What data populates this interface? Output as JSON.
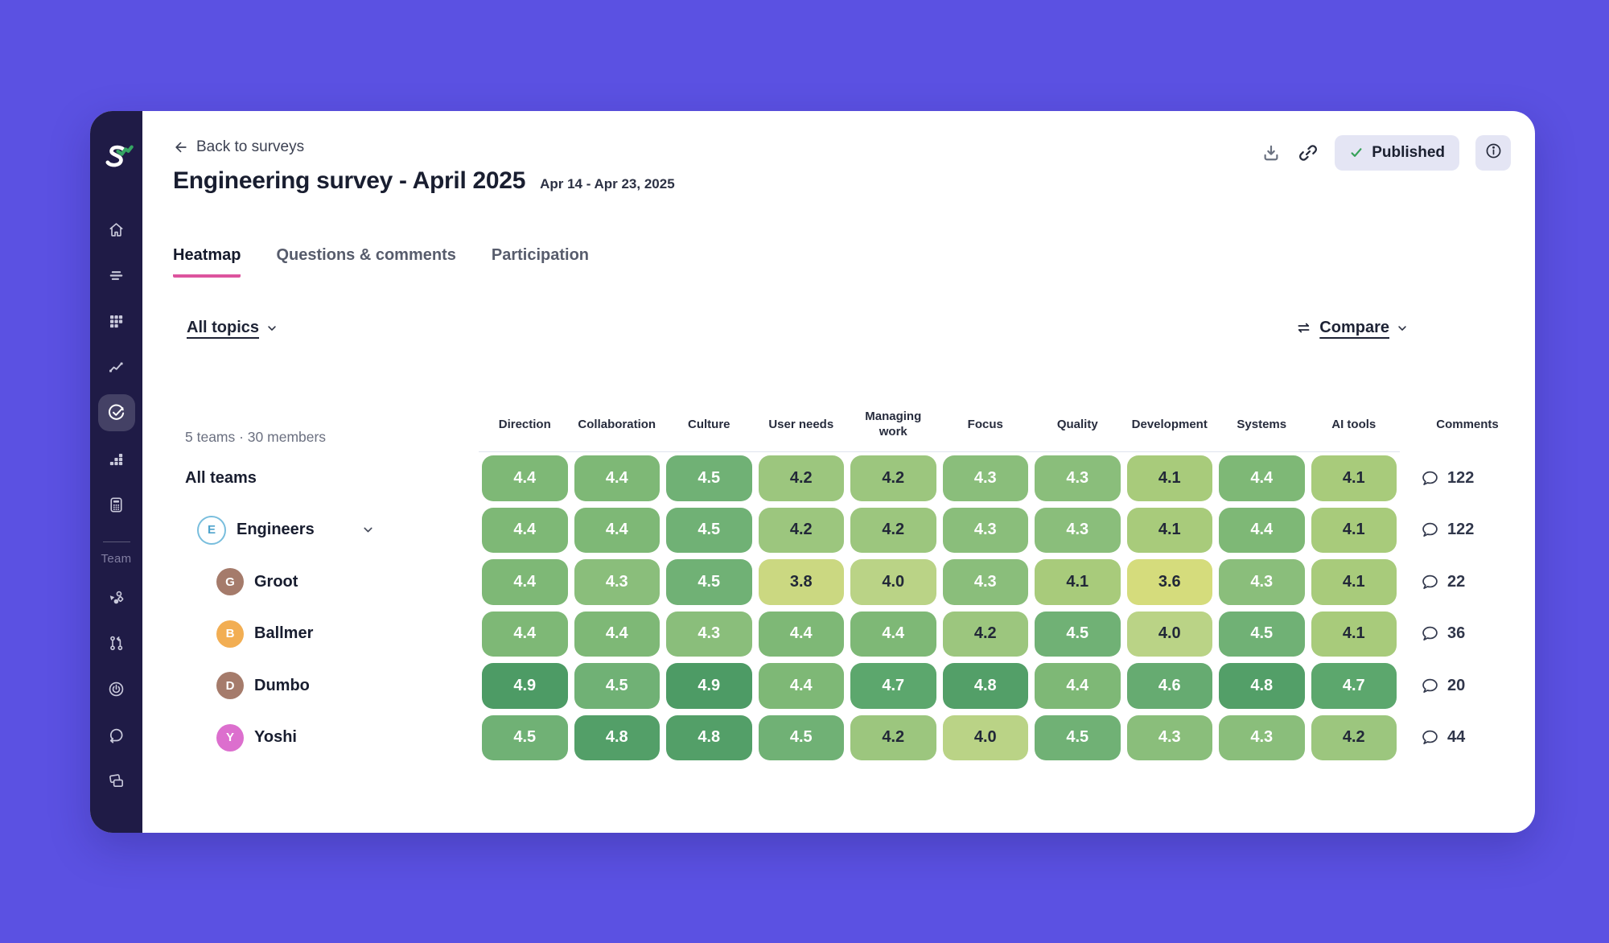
{
  "app": {
    "background_color": "#5b51e2",
    "sidebar_color": "#1f1b46",
    "accent_pink": "#dd549e",
    "badge_bg": "#e4e5f4",
    "published_check_green": "#36a159"
  },
  "sidebar": {
    "logo": "screenful-logo",
    "section_label": "Team",
    "nav_items": [
      {
        "icon": "home-icon",
        "active": false
      },
      {
        "icon": "list-bars-icon",
        "active": false
      },
      {
        "icon": "grid-icon",
        "active": false
      },
      {
        "icon": "trend-icon",
        "active": false
      },
      {
        "icon": "survey-check-icon",
        "active": true
      },
      {
        "icon": "bar-chart-icon",
        "active": false
      },
      {
        "icon": "calculator-icon",
        "active": false
      }
    ],
    "team_items": [
      {
        "icon": "shapes-icon",
        "active": false
      },
      {
        "icon": "pull-request-icon",
        "active": false
      },
      {
        "icon": "goal-icon",
        "active": false
      },
      {
        "icon": "sprint-loop-icon",
        "active": false
      },
      {
        "icon": "cards-icon",
        "active": false
      }
    ]
  },
  "header": {
    "back_label": "Back to surveys",
    "title": "Engineering survey - April 2025",
    "date_range": "Apr 14 - Apr 23, 2025",
    "published_label": "Published",
    "action_icons": [
      "download-icon",
      "link-icon",
      "info-icon"
    ]
  },
  "tabs": [
    {
      "label": "Heatmap",
      "active": true
    },
    {
      "label": "Questions & comments",
      "active": false
    },
    {
      "label": "Participation",
      "active": false
    }
  ],
  "filters": {
    "topics_label": "All topics",
    "compare_label": "Compare"
  },
  "heatmap": {
    "summary": "5 teams · 30 members",
    "columns": [
      "Direction",
      "Collaboration",
      "Culture",
      "User needs",
      "Managing work",
      "Focus",
      "Quality",
      "Development",
      "Systems",
      "AI tools",
      "Comments"
    ],
    "rows": [
      {
        "label": "All teams",
        "level": "all",
        "values": [
          "4.4",
          "4.4",
          "4.5",
          "4.2",
          "4.2",
          "4.3",
          "4.3",
          "4.1",
          "4.4",
          "4.1"
        ],
        "comments": "122"
      },
      {
        "label": "Engineers",
        "level": "group",
        "expandable": true,
        "avatar": {
          "letter": "E",
          "style": "outline",
          "color": "#79bedd"
        },
        "values": [
          "4.4",
          "4.4",
          "4.5",
          "4.2",
          "4.2",
          "4.3",
          "4.3",
          "4.1",
          "4.4",
          "4.1"
        ],
        "comments": "122"
      },
      {
        "label": "Groot",
        "level": "team",
        "avatar": {
          "letter": "G",
          "style": "fill",
          "color": "#a57b6b"
        },
        "values": [
          "4.4",
          "4.3",
          "4.5",
          "3.8",
          "4.0",
          "4.3",
          "4.1",
          "3.6",
          "4.3",
          "4.1"
        ],
        "comments": "22"
      },
      {
        "label": "Ballmer",
        "level": "team",
        "avatar": {
          "letter": "B",
          "style": "fill",
          "color": "#f2ae53"
        },
        "values": [
          "4.4",
          "4.4",
          "4.3",
          "4.4",
          "4.4",
          "4.2",
          "4.5",
          "4.0",
          "4.5",
          "4.1"
        ],
        "comments": "36"
      },
      {
        "label": "Dumbo",
        "level": "team",
        "avatar": {
          "letter": "D",
          "style": "fill",
          "color": "#a57b6b"
        },
        "values": [
          "4.9",
          "4.5",
          "4.9",
          "4.4",
          "4.7",
          "4.8",
          "4.4",
          "4.6",
          "4.8",
          "4.7"
        ],
        "comments": "20"
      },
      {
        "label": "Yoshi",
        "level": "team",
        "avatar": {
          "letter": "Y",
          "style": "fill",
          "color": "#dc6fce"
        },
        "values": [
          "4.5",
          "4.8",
          "4.8",
          "4.5",
          "4.2",
          "4.0",
          "4.5",
          "4.3",
          "4.3",
          "4.2"
        ],
        "comments": "44"
      }
    ],
    "color_scale": {
      "3.6": "#d5dc7c",
      "3.8": "#cbd881",
      "4.0": "#bad386",
      "4.1": "#a8cb7b",
      "4.2": "#9cc67e",
      "4.3": "#8abe7b",
      "4.4": "#7eb876",
      "4.5": "#70b175",
      "4.6": "#66ab71",
      "4.7": "#5ca76d",
      "4.8": "#539f68",
      "4.9": "#4d9b65"
    },
    "white_text_min": 4.3,
    "cell_text_dark": "#222838",
    "cell_text_light": "#ffffff"
  }
}
